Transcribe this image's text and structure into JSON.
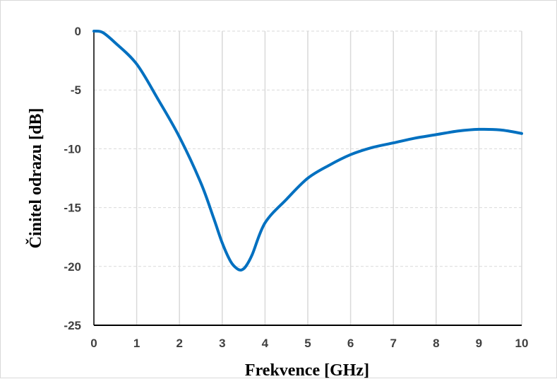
{
  "chart_data": {
    "type": "line",
    "title": "",
    "xlabel": "Frekvence [GHz]",
    "ylabel": "Činitel odrazu [dB]",
    "xlim": [
      0,
      10
    ],
    "ylim": [
      -25,
      0
    ],
    "x_ticks": [
      "0",
      "1",
      "2",
      "3",
      "4",
      "5",
      "6",
      "7",
      "8",
      "9",
      "10"
    ],
    "y_ticks": [
      "0",
      "-5",
      "-10",
      "-15",
      "-20",
      "-25"
    ],
    "grid": true,
    "legend": "none",
    "colors": {
      "series": "#0070c0",
      "grid": "#d9d9d9",
      "axis": "#000000",
      "tick_text": "#404040"
    },
    "series": [
      {
        "x": [
          0,
          0.2,
          0.5,
          1,
          1.5,
          2,
          2.5,
          2.8,
          3,
          3.2,
          3.35,
          3.45,
          3.55,
          3.7,
          4,
          4.5,
          5,
          5.5,
          6,
          6.5,
          7,
          7.5,
          8,
          8.5,
          9,
          9.5,
          10
        ],
        "y": [
          0,
          -0.1,
          -1.0,
          -2.8,
          -5.8,
          -9.0,
          -12.9,
          -15.9,
          -18.0,
          -19.6,
          -20.2,
          -20.3,
          -20.0,
          -19.0,
          -16.3,
          -14.3,
          -12.5,
          -11.4,
          -10.5,
          -9.9,
          -9.5,
          -9.1,
          -8.8,
          -8.5,
          -8.35,
          -8.4,
          -8.7
        ]
      }
    ]
  }
}
